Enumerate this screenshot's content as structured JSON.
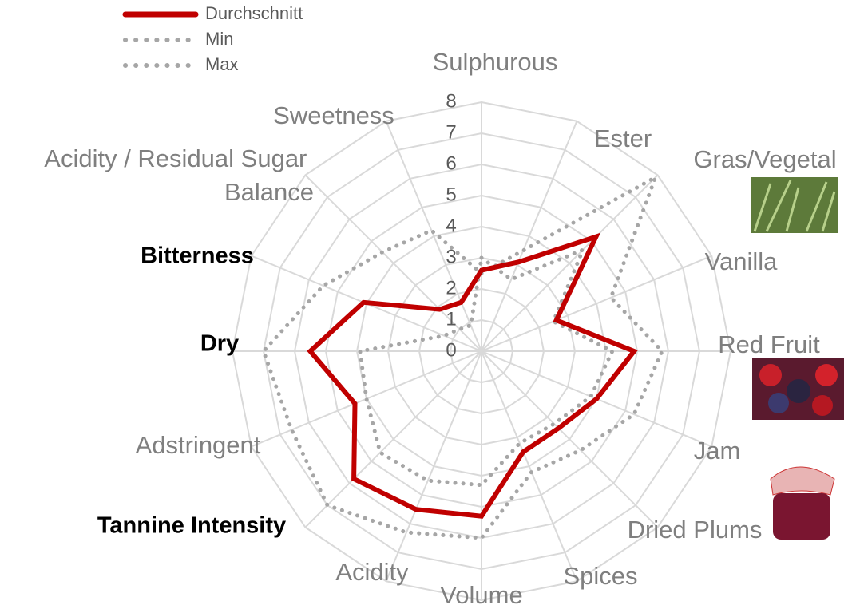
{
  "chart_data": {
    "type": "radar",
    "categories": [
      "Sulphurous",
      "Ester",
      "Gras/Vegetal",
      "Vanilla",
      "Red Fruit",
      "Jam",
      "Dried Plums",
      "Spices",
      "Volume",
      "Acidity",
      "Tannine Intensity",
      "Adstringent",
      "Dry",
      "Bitterness",
      "Acidity / Residual Sugar Balance",
      "Sweetness"
    ],
    "series": [
      {
        "name": "Durchschnitt",
        "color": "#c00000",
        "values": [
          2.6,
          3.1,
          5.2,
          2.6,
          4.9,
          4.0,
          3.5,
          3.5,
          5.3,
          5.5,
          5.8,
          4.4,
          5.5,
          4.1,
          1.9,
          1.7
        ]
      },
      {
        "name": "Min",
        "color": "#a6a6a6",
        "values": [
          3.0,
          2.5,
          4.6,
          2.5,
          4.2,
          3.8,
          3.3,
          3.2,
          4.3,
          4.5,
          4.6,
          4.0,
          3.9,
          1.3,
          1.0,
          0.9
        ]
      },
      {
        "name": "Max",
        "color": "#a6a6a6",
        "values": [
          2.5,
          3.5,
          7.9,
          4.5,
          5.8,
          5.3,
          4.5,
          4.2,
          6.0,
          6.3,
          7.0,
          6.6,
          7.0,
          5.5,
          4.5,
          4.2
        ]
      }
    ],
    "ylim": [
      0,
      8
    ],
    "yticks": [
      0,
      1,
      2,
      3,
      4,
      5,
      6,
      7,
      8
    ],
    "grid": true
  }
}
